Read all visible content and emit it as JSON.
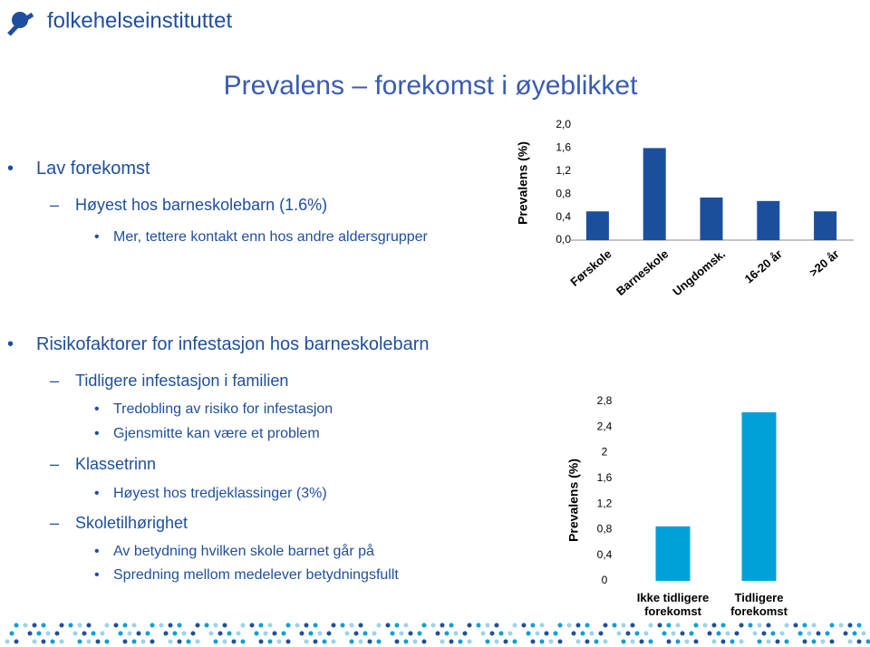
{
  "header": {
    "logo": "folkehelseinstituttet",
    "title": "Prevalens – forekomst i øyeblikket"
  },
  "sections": [
    {
      "text": "Lav forekomst",
      "items": [
        {
          "text": "Høyest hos barneskolebarn (1.6%)",
          "items": [
            "Mer, tettere kontakt enn hos andre aldersgrupper"
          ]
        }
      ]
    },
    {
      "text": "Risikofaktorer for infestasjon hos barneskolebarn",
      "items": [
        {
          "text": "Tidligere infestasjon i familien",
          "items": [
            "Tredobling av risiko for infestasjon",
            "Gjensmitte kan være et problem"
          ]
        },
        {
          "text": "Klassetrinn",
          "items": [
            "Høyest hos tredjeklassinger (3%)"
          ]
        },
        {
          "text": "Skoletilhørighet",
          "items": [
            "Av betydning hvilken skole barnet går på",
            "Spredning mellom medelever betydningsfullt"
          ]
        }
      ]
    }
  ],
  "chart_data": [
    {
      "type": "bar",
      "y_label": "Prevalens (%)",
      "categories": [
        "Førskole",
        "Barneskole",
        "Ungdomsk.",
        "16-20 år",
        ">20 år"
      ],
      "values": [
        0.5,
        1.6,
        0.74,
        0.68,
        0.5
      ],
      "color": "#1b4f9c",
      "ylim": [
        0,
        2.0
      ],
      "yticks": [
        {
          "value": 0,
          "label": "0,0"
        },
        {
          "value": 0.4,
          "label": "0,4"
        },
        {
          "value": 0.8,
          "label": "0,8"
        },
        {
          "value": 1.2,
          "label": "1,2"
        },
        {
          "value": 1.6,
          "label": "1,6"
        },
        {
          "value": 2.0,
          "label": "2,0"
        }
      ]
    },
    {
      "type": "bar",
      "y_label": "Prevalens (%)",
      "categories": [
        "Ikke tidligere forekomst",
        "Tidligere forekomst"
      ],
      "values": [
        0.85,
        2.63
      ],
      "color": "#00a0d8",
      "ylim": [
        0,
        2.8
      ],
      "yticks": [
        0,
        {
          "value": 0.4,
          "label": "0,4"
        },
        {
          "value": 0.8,
          "label": "0,8"
        },
        {
          "value": 1.2,
          "label": "1,2"
        },
        {
          "value": 1.6,
          "label": "1,6"
        },
        2,
        {
          "value": 2.4,
          "label": "2,4"
        },
        {
          "value": 2.8,
          "label": "2,8"
        }
      ]
    }
  ]
}
